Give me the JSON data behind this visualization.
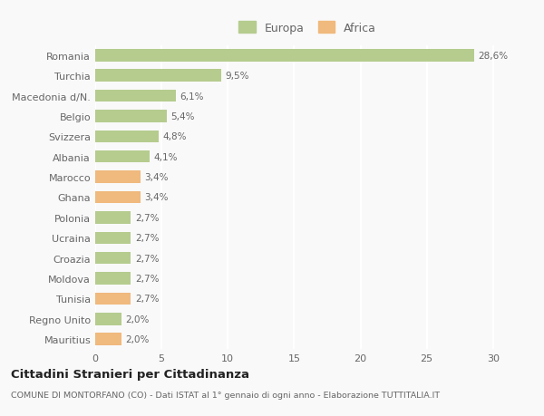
{
  "categories": [
    "Romania",
    "Turchia",
    "Macedonia d/N.",
    "Belgio",
    "Svizzera",
    "Albania",
    "Marocco",
    "Ghana",
    "Polonia",
    "Ucraina",
    "Croazia",
    "Moldova",
    "Tunisia",
    "Regno Unito",
    "Mauritius"
  ],
  "values": [
    28.6,
    9.5,
    6.1,
    5.4,
    4.8,
    4.1,
    3.4,
    3.4,
    2.7,
    2.7,
    2.7,
    2.7,
    2.7,
    2.0,
    2.0
  ],
  "labels": [
    "28,6%",
    "9,5%",
    "6,1%",
    "5,4%",
    "4,8%",
    "4,1%",
    "3,4%",
    "3,4%",
    "2,7%",
    "2,7%",
    "2,7%",
    "2,7%",
    "2,7%",
    "2,0%",
    "2,0%"
  ],
  "continents": [
    "Europa",
    "Europa",
    "Europa",
    "Europa",
    "Europa",
    "Europa",
    "Africa",
    "Africa",
    "Europa",
    "Europa",
    "Europa",
    "Europa",
    "Africa",
    "Europa",
    "Africa"
  ],
  "color_europa": "#b5cc8e",
  "color_africa": "#f0b97d",
  "background_color": "#f9f9f9",
  "title": "Cittadini Stranieri per Cittadinanza",
  "subtitle": "COMUNE DI MONTORFANO (CO) - Dati ISTAT al 1° gennaio di ogni anno - Elaborazione TUTTITALIA.IT",
  "xlim": [
    0,
    32
  ],
  "xticks": [
    0,
    5,
    10,
    15,
    20,
    25,
    30
  ],
  "legend_europa": "Europa",
  "legend_africa": "Africa"
}
